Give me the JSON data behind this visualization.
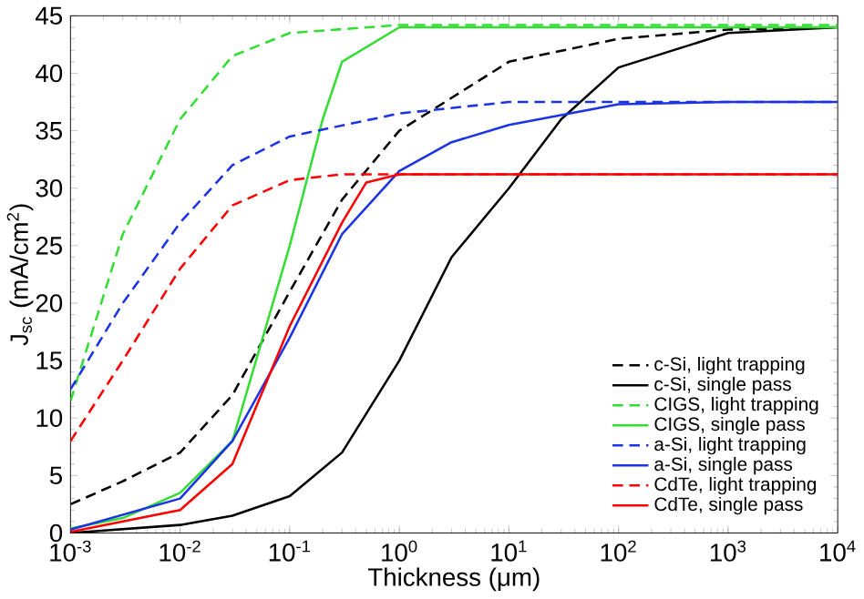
{
  "chart_data": {
    "type": "line",
    "xlabel": "Thickness (μm)",
    "ylabel": "J$_{sc}$ (mA/cm$^{2}$)",
    "log": "x",
    "xlim": [
      0.001,
      10000
    ],
    "ylim": [
      0,
      45
    ],
    "xticks": [
      {
        "value": 0.001,
        "label": "10$^{-3}$"
      },
      {
        "value": 0.01,
        "label": "10$^{-2}$"
      },
      {
        "value": 0.1,
        "label": "10$^{-1}$"
      },
      {
        "value": 1,
        "label": "10$^{0}$"
      },
      {
        "value": 10,
        "label": "10$^{1}$"
      },
      {
        "value": 100,
        "label": "10$^{2}$"
      },
      {
        "value": 1000,
        "label": "10$^{3}$"
      },
      {
        "value": 10000,
        "label": "10$^{4}$"
      }
    ],
    "yticks": [
      0,
      5,
      10,
      15,
      20,
      25,
      30,
      35,
      40,
      45
    ],
    "legend": "bottom right",
    "grid": false,
    "marker": "none",
    "series": [
      {
        "name": "c-Si, light trapping",
        "color": "#000000",
        "line_style": "dashed",
        "x": [
          0.001,
          0.003,
          0.01,
          0.03,
          0.1,
          0.3,
          1,
          10,
          100,
          1000,
          10000
        ],
        "values": [
          2.5,
          4.5,
          7,
          12,
          21,
          29,
          35,
          41,
          43,
          43.8,
          44
        ]
      },
      {
        "name": "c-Si, single pass",
        "color": "#000000",
        "line_style": "solid",
        "x": [
          0.001,
          0.01,
          0.03,
          0.1,
          0.3,
          1,
          3,
          10,
          30,
          100,
          1000,
          10000
        ],
        "values": [
          0,
          0.7,
          1.5,
          3.2,
          7,
          15,
          24,
          30,
          36,
          40.5,
          43.5,
          44
        ]
      },
      {
        "name": "CIGS, light trapping",
        "color": "#33dd33",
        "line_style": "dashed",
        "x": [
          0.001,
          0.003,
          0.01,
          0.03,
          0.1,
          1,
          10000
        ],
        "values": [
          11.5,
          26,
          36,
          41.5,
          43.5,
          44.2,
          44.2
        ]
      },
      {
        "name": "CIGS, single pass",
        "color": "#33dd33",
        "line_style": "solid",
        "x": [
          0.001,
          0.003,
          0.01,
          0.03,
          0.1,
          0.2,
          0.3,
          1,
          10000
        ],
        "values": [
          0.4,
          1.3,
          3.5,
          8,
          25,
          36,
          41,
          44,
          44
        ]
      },
      {
        "name": "a-Si, light trapping",
        "color": "#1a33e6",
        "line_style": "dashed",
        "x": [
          0.001,
          0.003,
          0.01,
          0.03,
          0.1,
          1,
          10,
          10000
        ],
        "values": [
          12.5,
          20,
          27,
          32,
          34.5,
          36.5,
          37.5,
          37.5
        ]
      },
      {
        "name": "a-Si, single pass",
        "color": "#1a33e6",
        "line_style": "solid",
        "x": [
          0.001,
          0.01,
          0.03,
          0.1,
          0.3,
          1,
          3,
          10,
          100,
          1000,
          10000
        ],
        "values": [
          0.3,
          3,
          8,
          17,
          26,
          31.5,
          34,
          35.5,
          37.3,
          37.5,
          37.5
        ]
      },
      {
        "name": "CdTe, light trapping",
        "color": "#ff0000",
        "line_style": "dashed",
        "x": [
          0.001,
          0.003,
          0.01,
          0.03,
          0.1,
          0.3,
          10000
        ],
        "values": [
          8,
          15,
          23,
          28.5,
          30.7,
          31.2,
          31.2
        ]
      },
      {
        "name": "CdTe, single pass",
        "color": "#ff0000",
        "line_style": "solid",
        "x": [
          0.001,
          0.01,
          0.03,
          0.1,
          0.3,
          0.5,
          1,
          10000
        ],
        "values": [
          0.1,
          2,
          6,
          18,
          27,
          30.5,
          31.2,
          31.2
        ]
      }
    ]
  }
}
